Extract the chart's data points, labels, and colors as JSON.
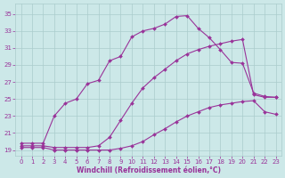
{
  "bg_color": "#cce8e8",
  "line_color": "#993399",
  "grid_color": "#aacccc",
  "xlabel": "Windchill (Refroidissement éolien,°C)",
  "yticks": [
    19,
    21,
    23,
    25,
    27,
    29,
    31,
    33,
    35
  ],
  "xlim": [
    -0.5,
    23.5
  ],
  "ylim": [
    18.3,
    36.2
  ],
  "curves": [
    {
      "x": [
        0,
        1,
        2,
        3,
        4,
        5,
        6,
        7,
        8,
        9,
        10,
        11,
        12,
        13,
        14,
        15,
        16,
        17,
        18,
        19,
        20,
        21,
        22,
        23
      ],
      "y": [
        19.8,
        19.8,
        19.8,
        23.0,
        24.5,
        25.0,
        26.8,
        27.2,
        29.5,
        30.0,
        32.3,
        33.0,
        33.3,
        33.8,
        34.7,
        34.8,
        33.3,
        32.2,
        30.8,
        29.3,
        29.2,
        25.7,
        25.3,
        25.2
      ]
    },
    {
      "x": [
        0,
        1,
        2,
        3,
        4,
        5,
        6,
        7,
        8,
        9,
        10,
        11,
        12,
        13,
        14,
        15,
        16,
        17,
        18,
        19,
        20,
        21,
        22,
        23
      ],
      "y": [
        19.5,
        19.5,
        19.5,
        19.3,
        19.3,
        19.3,
        19.3,
        19.5,
        20.5,
        22.5,
        24.5,
        26.3,
        27.5,
        28.5,
        29.5,
        30.3,
        30.8,
        31.2,
        31.5,
        31.8,
        32.0,
        25.5,
        25.2,
        25.2
      ]
    },
    {
      "x": [
        0,
        1,
        2,
        3,
        4,
        5,
        6,
        7,
        8,
        9,
        10,
        11,
        12,
        13,
        14,
        15,
        16,
        17,
        18,
        19,
        20,
        21,
        22,
        23
      ],
      "y": [
        19.3,
        19.3,
        19.3,
        19.0,
        19.0,
        19.0,
        19.0,
        19.0,
        19.0,
        19.2,
        19.5,
        20.0,
        20.8,
        21.5,
        22.3,
        23.0,
        23.5,
        24.0,
        24.3,
        24.5,
        24.7,
        24.8,
        23.5,
        23.2
      ]
    }
  ]
}
